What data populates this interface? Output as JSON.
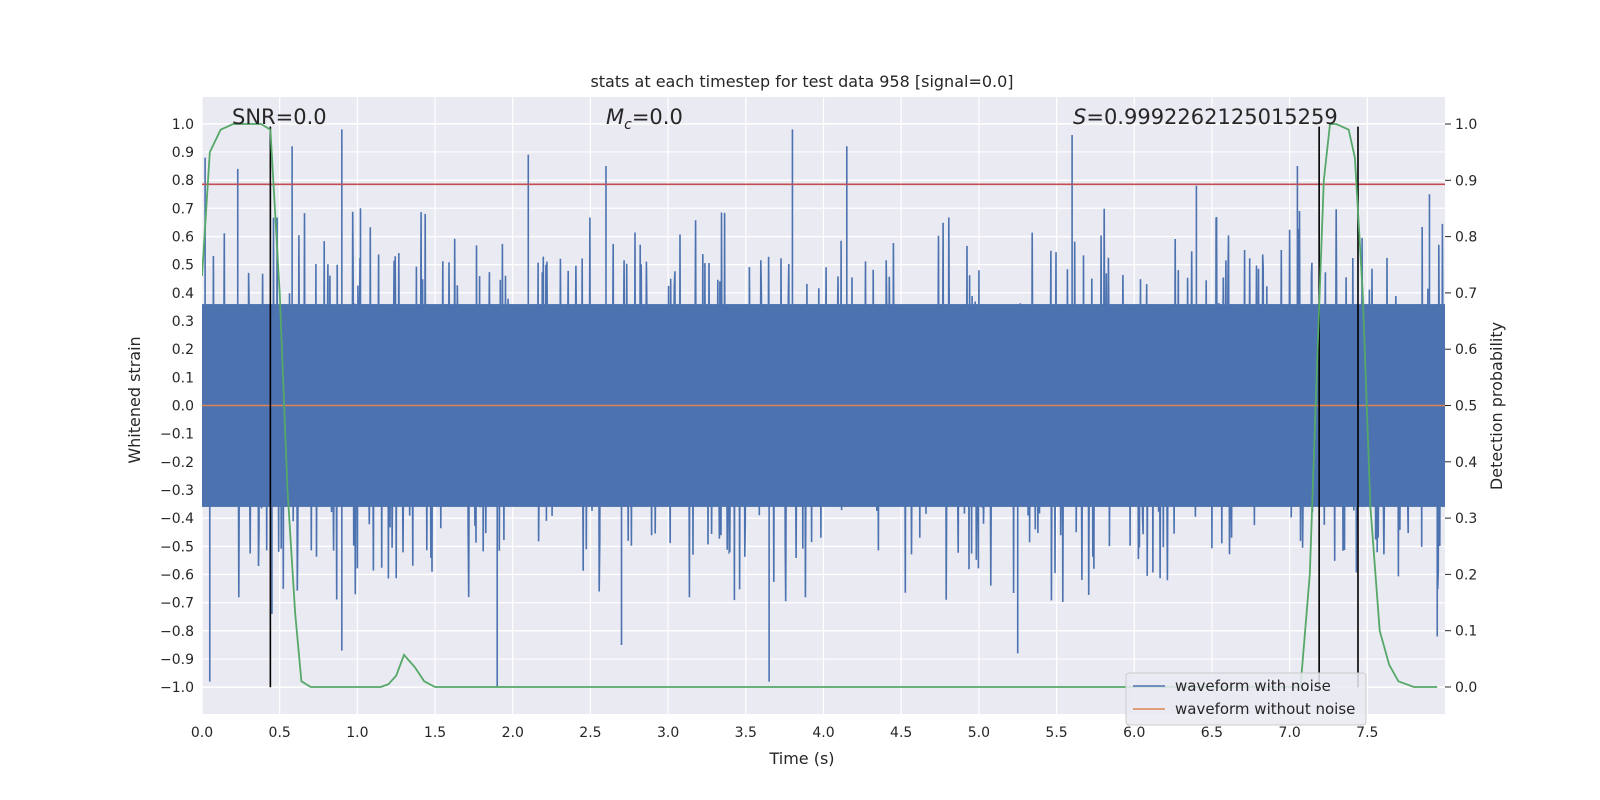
{
  "chart_data": {
    "type": "line",
    "title": "stats at each timestep for test data 958 [signal=0.0]",
    "xlabel": "Time (s)",
    "ylabel": "Whitened strain",
    "ylabel_right": "Detection probability",
    "xlim": [
      0.0,
      8.0
    ],
    "ylim": [
      -1.095,
      1.095
    ],
    "ylim_right": [
      -0.048,
      1.048
    ],
    "x_ticks": [
      0.0,
      0.5,
      1.0,
      1.5,
      2.0,
      2.5,
      3.0,
      3.5,
      4.0,
      4.5,
      5.0,
      5.5,
      6.0,
      6.5,
      7.0,
      7.5
    ],
    "x_tick_labels": [
      "0.0",
      "0.5",
      "1.0",
      "1.5",
      "2.0",
      "2.5",
      "3.0",
      "3.5",
      "4.0",
      "4.5",
      "5.0",
      "5.5",
      "6.0",
      "6.5",
      "7.0",
      "7.5"
    ],
    "y_ticks": [
      1.0,
      0.9,
      0.8,
      0.7,
      0.6,
      0.5,
      0.4,
      0.3,
      0.2,
      0.1,
      0.0,
      -0.1,
      -0.2,
      -0.3,
      -0.4,
      -0.5,
      -0.6,
      -0.7,
      -0.8,
      -0.9,
      -1.0
    ],
    "y_tick_labels": [
      "1.0",
      "0.9",
      "0.8",
      "0.7",
      "0.6",
      "0.5",
      "0.4",
      "0.3",
      "0.2",
      "0.1",
      "0.0",
      "−0.1",
      "−0.2",
      "−0.3",
      "−0.4",
      "−0.5",
      "−0.6",
      "−0.7",
      "−0.8",
      "−0.9",
      "−1.0"
    ],
    "y_right_ticks": [
      1.0,
      0.9,
      0.8,
      0.7,
      0.6,
      0.5,
      0.4,
      0.3,
      0.2,
      0.1,
      0.0
    ],
    "y_right_tick_labels": [
      "1.0",
      "0.9",
      "0.8",
      "0.7",
      "0.6",
      "0.5",
      "0.4",
      "0.3",
      "0.2",
      "0.1",
      "0.0"
    ],
    "annotations": {
      "snr": "SNR=0.0",
      "mc_symbol": "M",
      "mc_sub": "c",
      "mc_value": "=0.0",
      "s_symbol": "S",
      "s_value": "=0.9992262125015259"
    },
    "series": [
      {
        "name": "waveform with noise",
        "color": "#4c72b0",
        "description": "dense noise trace, envelope mostly within ±0.65 with spikes",
        "spikes": [
          [
            0.02,
            0.88
          ],
          [
            0.05,
            -0.98
          ],
          [
            0.23,
            0.84
          ],
          [
            0.45,
            -0.74
          ],
          [
            0.58,
            0.92
          ],
          [
            0.9,
            0.98
          ],
          [
            0.9,
            -0.87
          ],
          [
            1.02,
            0.7
          ],
          [
            1.9,
            -1.0
          ],
          [
            2.1,
            0.89
          ],
          [
            2.6,
            0.85
          ],
          [
            2.7,
            -0.85
          ],
          [
            3.65,
            -0.98
          ],
          [
            3.8,
            0.98
          ],
          [
            4.15,
            0.92
          ],
          [
            5.25,
            -0.88
          ],
          [
            5.6,
            0.96
          ],
          [
            6.4,
            0.78
          ],
          [
            7.05,
            0.85
          ],
          [
            7.9,
            0.75
          ],
          [
            7.95,
            -0.82
          ]
        ]
      },
      {
        "name": "waveform without noise",
        "color": "#dd8452",
        "x": [
          0.0,
          8.0
        ],
        "y": [
          0.0,
          0.0
        ]
      },
      {
        "name": "detection probability",
        "color": "#55a868",
        "axis": "right",
        "x": [
          0.0,
          0.05,
          0.12,
          0.2,
          0.3,
          0.38,
          0.44,
          0.5,
          0.55,
          0.6,
          0.64,
          0.7,
          0.8,
          1.0,
          1.15,
          1.2,
          1.25,
          1.3,
          1.37,
          1.43,
          1.5,
          1.6,
          2.0,
          3.0,
          4.0,
          5.0,
          6.0,
          6.9,
          7.07,
          7.13,
          7.18,
          7.22,
          7.26,
          7.3,
          7.38,
          7.42,
          7.47,
          7.52,
          7.58,
          7.64,
          7.7,
          7.8,
          7.95
        ],
        "y": [
          0.73,
          0.95,
          0.99,
          1.0,
          1.0,
          1.0,
          0.99,
          0.7,
          0.35,
          0.13,
          0.01,
          0.0,
          0.0,
          0.0,
          0.0,
          0.005,
          0.02,
          0.057,
          0.035,
          0.01,
          0.0,
          0.0,
          0.0,
          0.0,
          0.0,
          0.0,
          0.0,
          0.0,
          0.0,
          0.2,
          0.6,
          0.9,
          1.0,
          1.0,
          0.99,
          0.94,
          0.7,
          0.32,
          0.1,
          0.04,
          0.01,
          0.0,
          0.0
        ]
      }
    ],
    "hlines": [
      {
        "name": "threshold",
        "y": 0.785,
        "color": "#c44e52"
      }
    ],
    "vlines": [
      {
        "name": "detection-start-1",
        "x": 0.44,
        "y_top": 0.99,
        "color": "#000000"
      },
      {
        "name": "detection-start-2",
        "x": 7.19,
        "y_top": 0.99,
        "color": "#000000"
      },
      {
        "name": "detection-end-2",
        "x": 7.44,
        "y_top": 0.99,
        "color": "#000000"
      }
    ],
    "legend": {
      "position": "lower-right",
      "entries": [
        {
          "label": "waveform with noise",
          "color": "#4c72b0"
        },
        {
          "label": "waveform without noise",
          "color": "#dd8452"
        }
      ]
    },
    "grid": true
  }
}
